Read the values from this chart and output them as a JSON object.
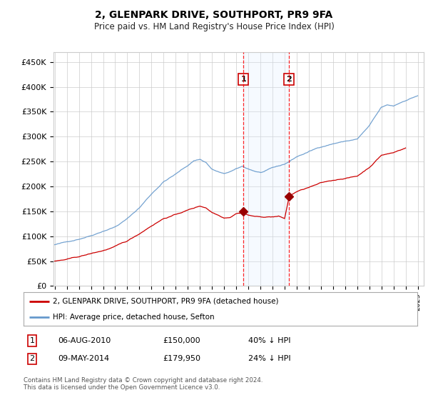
{
  "title": "2, GLENPARK DRIVE, SOUTHPORT, PR9 9FA",
  "subtitle": "Price paid vs. HM Land Registry's House Price Index (HPI)",
  "ylabel_ticks": [
    "£0",
    "£50K",
    "£100K",
    "£150K",
    "£200K",
    "£250K",
    "£300K",
    "£350K",
    "£400K",
    "£450K"
  ],
  "ytick_values": [
    0,
    50000,
    100000,
    150000,
    200000,
    250000,
    300000,
    350000,
    400000,
    450000
  ],
  "ylim": [
    0,
    470000
  ],
  "xlim_start": 1994.9,
  "xlim_end": 2025.5,
  "sale1_x": 2010.59,
  "sale1_y": 150000,
  "sale2_x": 2014.36,
  "sale2_y": 179950,
  "legend_line1": "2, GLENPARK DRIVE, SOUTHPORT, PR9 9FA (detached house)",
  "legend_line2": "HPI: Average price, detached house, Sefton",
  "table_row1": [
    "1",
    "06-AUG-2010",
    "£150,000",
    "40% ↓ HPI"
  ],
  "table_row2": [
    "2",
    "09-MAY-2014",
    "£179,950",
    "24% ↓ HPI"
  ],
  "footnote": "Contains HM Land Registry data © Crown copyright and database right 2024.\nThis data is licensed under the Open Government Licence v3.0.",
  "line_color_red": "#cc0000",
  "line_color_blue": "#6699cc",
  "marker_box_color": "#cc0000",
  "shade_color": "#ddeeff",
  "grid_color": "#cccccc",
  "bg_color": "#ffffff"
}
